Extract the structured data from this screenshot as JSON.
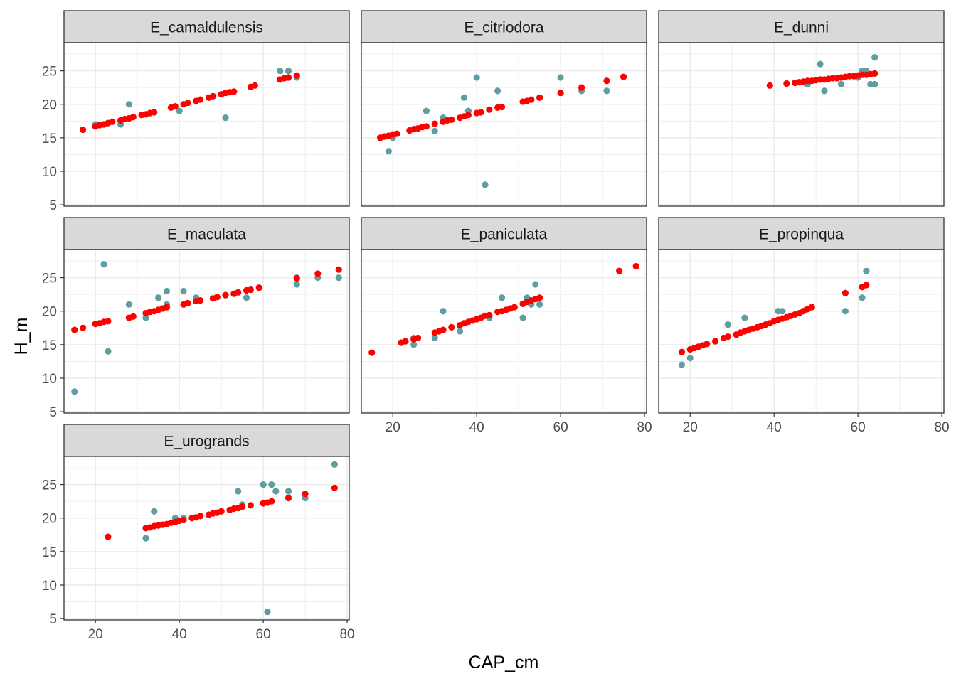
{
  "chart_data": {
    "type": "scatter",
    "xlabel": "CAP_cm",
    "ylabel": "H_m",
    "xlim": [
      12.5,
      80.5
    ],
    "ylim": [
      4.8,
      29.2
    ],
    "x_ticks": [
      20,
      40,
      60,
      80
    ],
    "y_ticks": [
      5,
      10,
      15,
      20,
      25
    ],
    "grid": true,
    "colors": {
      "observed": "#5f9ea0",
      "fitted": "#ff0000",
      "strip": "#d9d9d9",
      "grid": "#ebebeb"
    },
    "series": [
      {
        "panel": "E_camaldulensis",
        "observed": [
          [
            20,
            17
          ],
          [
            26,
            17
          ],
          [
            28,
            20
          ],
          [
            40,
            19
          ],
          [
            51,
            18
          ],
          [
            64,
            25
          ],
          [
            66,
            25
          ],
          [
            68,
            24
          ]
        ],
        "fitted": [
          [
            17,
            16.2
          ],
          [
            20,
            16.7
          ],
          [
            21,
            16.9
          ],
          [
            22,
            17.0
          ],
          [
            23,
            17.2
          ],
          [
            24,
            17.4
          ],
          [
            26,
            17.6
          ],
          [
            27,
            17.8
          ],
          [
            28,
            17.9
          ],
          [
            29,
            18.1
          ],
          [
            31,
            18.4
          ],
          [
            32,
            18.5
          ],
          [
            33,
            18.7
          ],
          [
            34,
            18.8
          ],
          [
            38,
            19.5
          ],
          [
            39,
            19.7
          ],
          [
            41,
            20.0
          ],
          [
            42,
            20.2
          ],
          [
            44,
            20.5
          ],
          [
            45,
            20.7
          ],
          [
            47,
            21.0
          ],
          [
            48,
            21.2
          ],
          [
            50,
            21.5
          ],
          [
            51,
            21.7
          ],
          [
            52,
            21.8
          ],
          [
            53,
            21.9
          ],
          [
            57,
            22.6
          ],
          [
            58,
            22.8
          ],
          [
            64,
            23.7
          ],
          [
            65,
            23.9
          ],
          [
            66,
            24.0
          ],
          [
            68,
            24.3
          ]
        ]
      },
      {
        "panel": "E_citriodora",
        "observed": [
          [
            19,
            13
          ],
          [
            20,
            15
          ],
          [
            28,
            19
          ],
          [
            30,
            16
          ],
          [
            32,
            18
          ],
          [
            37,
            21
          ],
          [
            38,
            19
          ],
          [
            40,
            24
          ],
          [
            42,
            8
          ],
          [
            45,
            22
          ],
          [
            60,
            24
          ],
          [
            65,
            22
          ],
          [
            71,
            22
          ]
        ],
        "fitted": [
          [
            17,
            15.0
          ],
          [
            18,
            15.2
          ],
          [
            19,
            15.3
          ],
          [
            20,
            15.5
          ],
          [
            21,
            15.6
          ],
          [
            24,
            16.1
          ],
          [
            25,
            16.3
          ],
          [
            26,
            16.4
          ],
          [
            27,
            16.6
          ],
          [
            28,
            16.7
          ],
          [
            30,
            17.1
          ],
          [
            32,
            17.4
          ],
          [
            33,
            17.6
          ],
          [
            34,
            17.7
          ],
          [
            36,
            18.0
          ],
          [
            37,
            18.2
          ],
          [
            38,
            18.4
          ],
          [
            40,
            18.7
          ],
          [
            41,
            18.8
          ],
          [
            43,
            19.2
          ],
          [
            45,
            19.5
          ],
          [
            46,
            19.6
          ],
          [
            51,
            20.4
          ],
          [
            52,
            20.5
          ],
          [
            53,
            20.7
          ],
          [
            55,
            21.0
          ],
          [
            60,
            21.7
          ],
          [
            65,
            22.5
          ],
          [
            71,
            23.5
          ],
          [
            75,
            24.1
          ]
        ]
      },
      {
        "panel": "E_dunni",
        "observed": [
          [
            48,
            23
          ],
          [
            51,
            26
          ],
          [
            52,
            22
          ],
          [
            56,
            23
          ],
          [
            60,
            24
          ],
          [
            61,
            25
          ],
          [
            62,
            25
          ],
          [
            63,
            23
          ],
          [
            64,
            27
          ],
          [
            64,
            23
          ]
        ],
        "fitted": [
          [
            39,
            22.8
          ],
          [
            43,
            23.1
          ],
          [
            45,
            23.2
          ],
          [
            46,
            23.3
          ],
          [
            47,
            23.4
          ],
          [
            48,
            23.5
          ],
          [
            49,
            23.5
          ],
          [
            50,
            23.6
          ],
          [
            51,
            23.7
          ],
          [
            52,
            23.7
          ],
          [
            53,
            23.8
          ],
          [
            54,
            23.9
          ],
          [
            55,
            23.9
          ],
          [
            56,
            24.0
          ],
          [
            57,
            24.1
          ],
          [
            58,
            24.2
          ],
          [
            59,
            24.2
          ],
          [
            60,
            24.3
          ],
          [
            61,
            24.4
          ],
          [
            62,
            24.4
          ],
          [
            63,
            24.5
          ],
          [
            64,
            24.6
          ]
        ]
      },
      {
        "panel": "E_maculata",
        "observed": [
          [
            15,
            8
          ],
          [
            22,
            27
          ],
          [
            23,
            14
          ],
          [
            28,
            21
          ],
          [
            32,
            19
          ],
          [
            35,
            22
          ],
          [
            37,
            23
          ],
          [
            37,
            21
          ],
          [
            41,
            23
          ],
          [
            44,
            22
          ],
          [
            56,
            22
          ],
          [
            68,
            25
          ],
          [
            68,
            24
          ],
          [
            73,
            25
          ],
          [
            78,
            25
          ]
        ],
        "fitted": [
          [
            15,
            17.2
          ],
          [
            17,
            17.5
          ],
          [
            20,
            18.1
          ],
          [
            21,
            18.2
          ],
          [
            22,
            18.4
          ],
          [
            23,
            18.5
          ],
          [
            28,
            19.0
          ],
          [
            29,
            19.2
          ],
          [
            32,
            19.7
          ],
          [
            33,
            19.9
          ],
          [
            34,
            20.0
          ],
          [
            35,
            20.2
          ],
          [
            36,
            20.4
          ],
          [
            37,
            20.6
          ],
          [
            41,
            21.0
          ],
          [
            42,
            21.2
          ],
          [
            44,
            21.5
          ],
          [
            45,
            21.6
          ],
          [
            48,
            21.9
          ],
          [
            49,
            22.1
          ],
          [
            51,
            22.4
          ],
          [
            53,
            22.6
          ],
          [
            54,
            22.8
          ],
          [
            56,
            23.1
          ],
          [
            57,
            23.2
          ],
          [
            59,
            23.5
          ],
          [
            68,
            24.9
          ],
          [
            73,
            25.6
          ],
          [
            78,
            26.2
          ]
        ]
      },
      {
        "panel": "E_paniculata",
        "observed": [
          [
            25,
            16
          ],
          [
            25,
            15
          ],
          [
            30,
            16
          ],
          [
            32,
            20
          ],
          [
            36,
            17
          ],
          [
            43,
            19
          ],
          [
            46,
            22
          ],
          [
            51,
            19
          ],
          [
            52,
            22
          ],
          [
            53,
            21
          ],
          [
            54,
            24
          ],
          [
            55,
            21
          ]
        ],
        "fitted": [
          [
            15,
            13.8
          ],
          [
            22,
            15.3
          ],
          [
            23,
            15.5
          ],
          [
            25,
            15.8
          ],
          [
            26,
            16.0
          ],
          [
            30,
            16.8
          ],
          [
            31,
            17.0
          ],
          [
            32,
            17.2
          ],
          [
            34,
            17.6
          ],
          [
            36,
            17.9
          ],
          [
            37,
            18.2
          ],
          [
            38,
            18.4
          ],
          [
            39,
            18.6
          ],
          [
            40,
            18.8
          ],
          [
            41,
            19.0
          ],
          [
            42,
            19.3
          ],
          [
            43,
            19.4
          ],
          [
            45,
            19.9
          ],
          [
            46,
            20.0
          ],
          [
            47,
            20.2
          ],
          [
            48,
            20.4
          ],
          [
            49,
            20.6
          ],
          [
            51,
            21.1
          ],
          [
            52,
            21.4
          ],
          [
            53,
            21.6
          ],
          [
            54,
            21.8
          ],
          [
            55,
            22.0
          ],
          [
            74,
            26.0
          ],
          [
            78,
            26.7
          ]
        ]
      },
      {
        "panel": "E_propinqua",
        "observed": [
          [
            18,
            12
          ],
          [
            20,
            13
          ],
          [
            29,
            18
          ],
          [
            33,
            19
          ],
          [
            41,
            20
          ],
          [
            42,
            20
          ],
          [
            47,
            20
          ],
          [
            57,
            20
          ],
          [
            61,
            22
          ],
          [
            62,
            26
          ]
        ],
        "fitted": [
          [
            18,
            13.9
          ],
          [
            20,
            14.3
          ],
          [
            21,
            14.5
          ],
          [
            22,
            14.7
          ],
          [
            23,
            14.9
          ],
          [
            24,
            15.1
          ],
          [
            26,
            15.5
          ],
          [
            28,
            16.0
          ],
          [
            29,
            16.2
          ],
          [
            31,
            16.5
          ],
          [
            32,
            16.8
          ],
          [
            33,
            17.0
          ],
          [
            34,
            17.2
          ],
          [
            35,
            17.4
          ],
          [
            36,
            17.6
          ],
          [
            37,
            17.8
          ],
          [
            38,
            18.0
          ],
          [
            39,
            18.2
          ],
          [
            40,
            18.5
          ],
          [
            41,
            18.7
          ],
          [
            42,
            18.9
          ],
          [
            43,
            19.1
          ],
          [
            44,
            19.3
          ],
          [
            45,
            19.5
          ],
          [
            46,
            19.7
          ],
          [
            47,
            20.0
          ],
          [
            48,
            20.3
          ],
          [
            49,
            20.6
          ],
          [
            57,
            22.7
          ],
          [
            61,
            23.6
          ],
          [
            62,
            23.9
          ]
        ]
      },
      {
        "panel": "E_urogrands",
        "observed": [
          [
            32,
            17
          ],
          [
            34,
            21
          ],
          [
            39,
            20
          ],
          [
            41,
            20
          ],
          [
            54,
            24
          ],
          [
            55,
            22
          ],
          [
            60,
            25
          ],
          [
            61,
            6
          ],
          [
            62,
            25
          ],
          [
            63,
            24
          ],
          [
            66,
            24
          ],
          [
            70,
            23
          ],
          [
            77,
            28
          ]
        ],
        "fitted": [
          [
            23,
            17.2
          ],
          [
            32,
            18.5
          ],
          [
            33,
            18.6
          ],
          [
            34,
            18.8
          ],
          [
            35,
            18.9
          ],
          [
            36,
            19.0
          ],
          [
            37,
            19.1
          ],
          [
            38,
            19.3
          ],
          [
            39,
            19.4
          ],
          [
            40,
            19.6
          ],
          [
            41,
            19.7
          ],
          [
            43,
            20.0
          ],
          [
            44,
            20.1
          ],
          [
            45,
            20.3
          ],
          [
            47,
            20.5
          ],
          [
            48,
            20.7
          ],
          [
            49,
            20.8
          ],
          [
            50,
            21.0
          ],
          [
            52,
            21.2
          ],
          [
            53,
            21.4
          ],
          [
            54,
            21.5
          ],
          [
            55,
            21.7
          ],
          [
            57,
            21.9
          ],
          [
            60,
            22.2
          ],
          [
            61,
            22.3
          ],
          [
            62,
            22.5
          ],
          [
            66,
            23.0
          ],
          [
            70,
            23.6
          ],
          [
            77,
            24.5
          ]
        ]
      }
    ]
  }
}
